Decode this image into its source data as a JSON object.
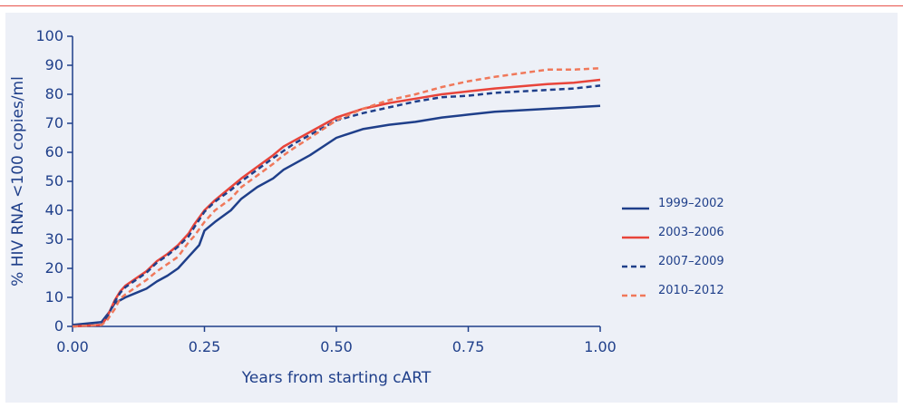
{
  "chart_data": {
    "type": "line",
    "title": "",
    "xlabel": "Years from starting cART",
    "ylabel": "% HIV RNA <100 copies/ml",
    "xlim": [
      0,
      1
    ],
    "ylim": [
      0,
      100
    ],
    "x_ticks": [
      "0.00",
      "0.25",
      "0.50",
      "0.75",
      "1.00"
    ],
    "y_ticks": [
      "0",
      "10",
      "20",
      "30",
      "40",
      "50",
      "60",
      "70",
      "80",
      "90",
      "100"
    ],
    "grid": false,
    "legend_position": "right",
    "series": [
      {
        "name": "1999–2002",
        "color": "#1f3f8a",
        "style": "solid",
        "points": [
          [
            0,
            0.5
          ],
          [
            0.055,
            1.5
          ],
          [
            0.07,
            5
          ],
          [
            0.08,
            8
          ],
          [
            0.1,
            10
          ],
          [
            0.12,
            11.5
          ],
          [
            0.14,
            13
          ],
          [
            0.16,
            15.5
          ],
          [
            0.18,
            17.5
          ],
          [
            0.2,
            20
          ],
          [
            0.22,
            24
          ],
          [
            0.24,
            28
          ],
          [
            0.25,
            33
          ],
          [
            0.27,
            36
          ],
          [
            0.3,
            40
          ],
          [
            0.32,
            44
          ],
          [
            0.35,
            48
          ],
          [
            0.38,
            51
          ],
          [
            0.4,
            54
          ],
          [
            0.42,
            56
          ],
          [
            0.45,
            59
          ],
          [
            0.5,
            65
          ],
          [
            0.55,
            68
          ],
          [
            0.6,
            69.5
          ],
          [
            0.65,
            70.5
          ],
          [
            0.7,
            72
          ],
          [
            0.75,
            73
          ],
          [
            0.8,
            74
          ],
          [
            0.9,
            75
          ],
          [
            1.0,
            76
          ]
        ]
      },
      {
        "name": "2003–2006",
        "color": "#e8443a",
        "style": "solid",
        "points": [
          [
            0,
            0
          ],
          [
            0.055,
            0.5
          ],
          [
            0.065,
            3
          ],
          [
            0.08,
            9
          ],
          [
            0.09,
            12
          ],
          [
            0.1,
            14
          ],
          [
            0.12,
            16.5
          ],
          [
            0.14,
            19
          ],
          [
            0.16,
            22.5
          ],
          [
            0.18,
            25
          ],
          [
            0.2,
            28
          ],
          [
            0.22,
            32
          ],
          [
            0.23,
            35
          ],
          [
            0.25,
            40
          ],
          [
            0.27,
            43.5
          ],
          [
            0.3,
            48
          ],
          [
            0.32,
            51
          ],
          [
            0.35,
            55
          ],
          [
            0.38,
            59
          ],
          [
            0.4,
            62
          ],
          [
            0.42,
            64
          ],
          [
            0.45,
            67
          ],
          [
            0.5,
            72
          ],
          [
            0.55,
            75
          ],
          [
            0.6,
            77
          ],
          [
            0.65,
            78.5
          ],
          [
            0.7,
            80
          ],
          [
            0.75,
            81
          ],
          [
            0.8,
            82
          ],
          [
            0.9,
            83.5
          ],
          [
            0.95,
            84
          ],
          [
            1.0,
            85
          ]
        ]
      },
      {
        "name": "2007–2009",
        "color": "#1f3f8a",
        "style": "dashed",
        "points": [
          [
            0,
            0
          ],
          [
            0.055,
            0.5
          ],
          [
            0.065,
            3
          ],
          [
            0.08,
            8.5
          ],
          [
            0.09,
            11.5
          ],
          [
            0.1,
            13.5
          ],
          [
            0.12,
            16
          ],
          [
            0.14,
            18.5
          ],
          [
            0.16,
            22
          ],
          [
            0.18,
            24.5
          ],
          [
            0.2,
            27.5
          ],
          [
            0.22,
            31
          ],
          [
            0.23,
            34
          ],
          [
            0.25,
            39.5
          ],
          [
            0.27,
            43
          ],
          [
            0.3,
            47
          ],
          [
            0.32,
            50
          ],
          [
            0.35,
            54
          ],
          [
            0.38,
            58
          ],
          [
            0.4,
            60.5
          ],
          [
            0.42,
            63
          ],
          [
            0.45,
            66
          ],
          [
            0.5,
            71
          ],
          [
            0.55,
            73.5
          ],
          [
            0.6,
            75.5
          ],
          [
            0.65,
            77.5
          ],
          [
            0.7,
            79
          ],
          [
            0.75,
            79.5
          ],
          [
            0.8,
            80.5
          ],
          [
            0.9,
            81.5
          ],
          [
            0.95,
            82
          ],
          [
            1.0,
            83
          ]
        ]
      },
      {
        "name": "2010–2012",
        "color": "#f0785a",
        "style": "dashed",
        "points": [
          [
            0,
            0
          ],
          [
            0.055,
            0.5
          ],
          [
            0.065,
            2
          ],
          [
            0.08,
            6
          ],
          [
            0.09,
            9.5
          ],
          [
            0.1,
            11
          ],
          [
            0.12,
            13.5
          ],
          [
            0.14,
            16
          ],
          [
            0.16,
            19
          ],
          [
            0.18,
            21.5
          ],
          [
            0.2,
            24
          ],
          [
            0.22,
            29
          ],
          [
            0.23,
            31
          ],
          [
            0.25,
            36
          ],
          [
            0.27,
            40
          ],
          [
            0.3,
            44
          ],
          [
            0.32,
            48
          ],
          [
            0.35,
            52
          ],
          [
            0.38,
            56
          ],
          [
            0.4,
            59
          ],
          [
            0.42,
            61.5
          ],
          [
            0.45,
            65
          ],
          [
            0.5,
            71
          ],
          [
            0.55,
            75
          ],
          [
            0.6,
            78
          ],
          [
            0.65,
            80
          ],
          [
            0.7,
            82.5
          ],
          [
            0.75,
            84.5
          ],
          [
            0.8,
            86
          ],
          [
            0.9,
            88.5
          ],
          [
            0.95,
            88.5
          ],
          [
            1.0,
            89
          ]
        ]
      }
    ]
  }
}
